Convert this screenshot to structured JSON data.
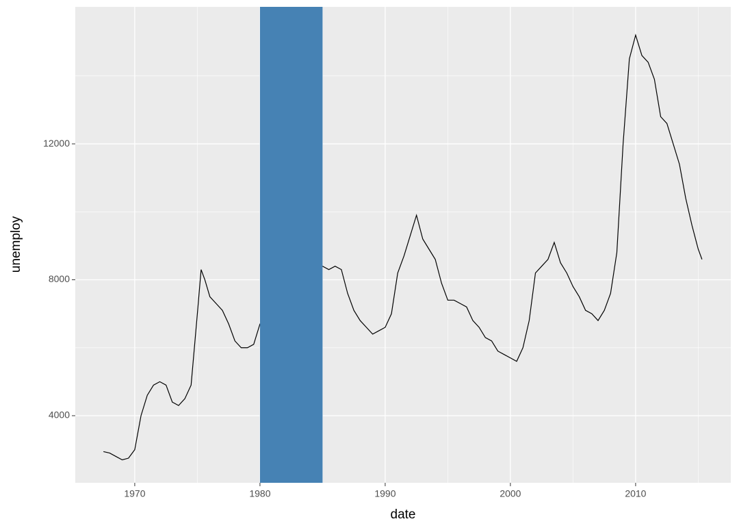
{
  "chart_data": {
    "type": "line",
    "x_label": "date",
    "y_label": "unemploy",
    "x": [
      1967.5,
      1968.0,
      1968.5,
      1969.0,
      1969.5,
      1970.0,
      1970.5,
      1971.0,
      1971.5,
      1972.0,
      1972.5,
      1973.0,
      1973.5,
      1974.0,
      1974.5,
      1975.0,
      1975.3,
      1975.6,
      1976.0,
      1976.5,
      1977.0,
      1977.5,
      1978.0,
      1978.5,
      1979.0,
      1979.5,
      1980.0,
      1985.0,
      1985.5,
      1986.0,
      1986.5,
      1987.0,
      1987.5,
      1988.0,
      1988.5,
      1989.0,
      1989.5,
      1990.0,
      1990.5,
      1991.0,
      1991.5,
      1992.0,
      1992.5,
      1993.0,
      1993.5,
      1994.0,
      1994.5,
      1995.0,
      1995.5,
      1996.0,
      1996.5,
      1997.0,
      1997.5,
      1998.0,
      1998.5,
      1999.0,
      1999.5,
      2000.0,
      2000.5,
      2001.0,
      2001.5,
      2002.0,
      2002.5,
      2003.0,
      2003.5,
      2004.0,
      2004.5,
      2005.0,
      2005.5,
      2006.0,
      2006.5,
      2007.0,
      2007.5,
      2008.0,
      2008.5,
      2009.0,
      2009.5,
      2010.0,
      2010.5,
      2011.0,
      2011.5,
      2012.0,
      2012.5,
      2013.0,
      2013.5,
      2014.0,
      2014.5,
      2015.0,
      2015.3
    ],
    "series": [
      {
        "color": "#000000",
        "values": [
          2944,
          2900,
          2800,
          2700,
          2750,
          3000,
          4000,
          4600,
          4900,
          5000,
          4900,
          4400,
          4300,
          4500,
          4900,
          7000,
          8300,
          8000,
          7500,
          7300,
          7100,
          6700,
          6200,
          6000,
          6000,
          6100,
          6700,
          8400,
          8300,
          8400,
          8300,
          7600,
          7100,
          6800,
          6600,
          6400,
          6500,
          6600,
          7000,
          8200,
          8700,
          9300,
          9900,
          9200,
          8900,
          8600,
          7900,
          7400,
          7400,
          7300,
          7200,
          6800,
          6600,
          6300,
          6200,
          5900,
          5800,
          5700,
          5600,
          6000,
          6800,
          8200,
          8400,
          8600,
          9100,
          8500,
          8200,
          7800,
          7500,
          7100,
          7000,
          6800,
          7100,
          7600,
          8800,
          12000,
          14500,
          15200,
          14600,
          14400,
          13900,
          12800,
          12600,
          12000,
          11400,
          10400,
          9600,
          8900,
          8600
        ]
      }
    ],
    "highlight": {
      "x": [
        1980,
        1985
      ],
      "color": "#4682b4"
    },
    "xlim": [
      1965.25,
      2017.6
    ],
    "ylim": [
      2025,
      16032
    ],
    "xticks": [
      1970,
      1980,
      1990,
      2000,
      2010
    ],
    "yticks": [
      4000,
      8000,
      12000
    ],
    "grid": true,
    "panel_color": "#ebebeb"
  }
}
